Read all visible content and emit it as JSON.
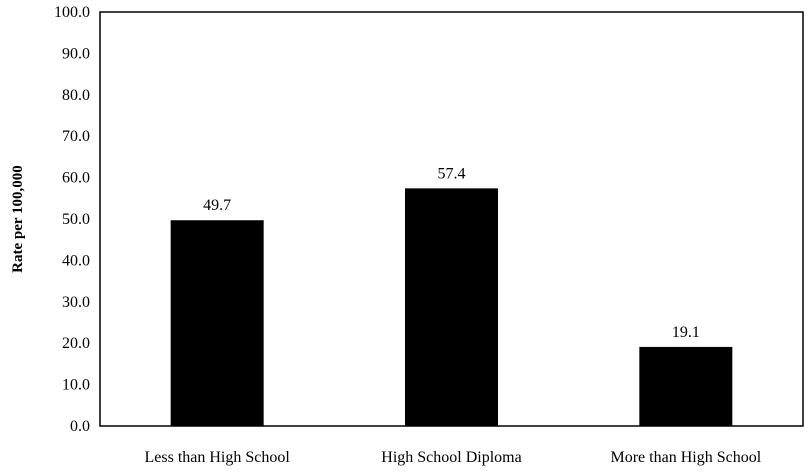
{
  "chart_data": {
    "type": "bar",
    "title": "",
    "xlabel": "",
    "ylabel": "Rate per 100,000",
    "categories": [
      "Less than High School",
      "High School Diploma",
      "More than High School"
    ],
    "values": [
      49.7,
      57.4,
      19.1
    ],
    "data_labels": [
      "49.7",
      "57.4",
      "19.1"
    ],
    "ylim": [
      0,
      100
    ],
    "y_ticks": [
      0,
      10,
      20,
      30,
      40,
      50,
      60,
      70,
      80,
      90,
      100
    ],
    "y_tick_labels": [
      "0.0",
      "10.0",
      "20.0",
      "30.0",
      "40.0",
      "50.0",
      "60.0",
      "70.0",
      "80.0",
      "90.0",
      "100.0"
    ],
    "grid": false,
    "legend": "none",
    "bar_color": "#000000"
  }
}
